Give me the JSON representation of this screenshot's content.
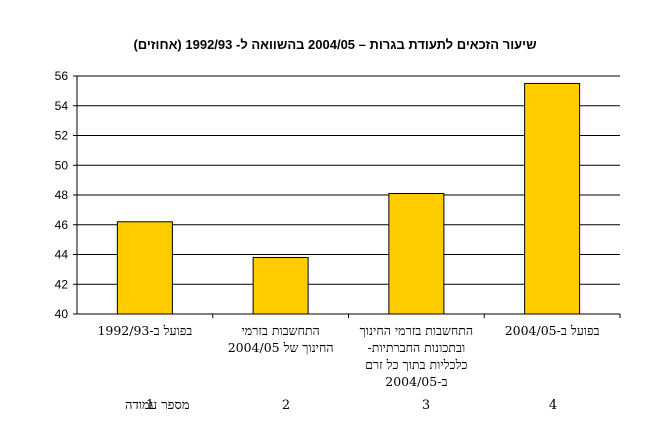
{
  "chart_data": {
    "type": "bar",
    "title": "שיעור הזכאים לתעודת בגרות – 2004/05 בהשוואה ל- 1992/93 (אחוזים)",
    "categories": [
      [
        "בפועל ב-1992/93"
      ],
      [
        "התחשבות בזרמי",
        "החינוך של 2004/05"
      ],
      [
        "התחשבות בזרמי החינוך",
        "ובתכונות החברתיות-",
        "כלכליות בתוך כל זרם",
        "ב-2004/05"
      ],
      [
        "בפועל ב-2004/05"
      ]
    ],
    "values": [
      46.2,
      43.8,
      48.1,
      55.5
    ],
    "ylim": [
      40,
      56
    ],
    "yticks": [
      "40",
      "42",
      "44",
      "46",
      "48",
      "50",
      "52",
      "54",
      "56"
    ],
    "grid": true,
    "bar_color": "#FFCC00",
    "xlabel": "",
    "ylabel": "",
    "column_row": {
      "label": "מספר עמודה",
      "numbers": [
        "1",
        "2",
        "3",
        "4"
      ]
    }
  }
}
